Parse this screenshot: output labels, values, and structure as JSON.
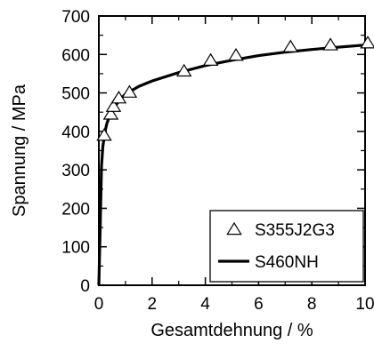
{
  "chart_data": {
    "type": "scatter",
    "title": "",
    "xlabel": "Gesamtdehnung / %",
    "ylabel": "Spannung / MPa",
    "xlim": [
      0,
      10
    ],
    "ylim": [
      0,
      700
    ],
    "xticks": [
      "0",
      "2",
      "4",
      "6",
      "8",
      "10"
    ],
    "yticks": [
      "0",
      "100",
      "200",
      "300",
      "400",
      "500",
      "600",
      "700"
    ],
    "grid": false,
    "legend_position": "bottom-right",
    "series": [
      {
        "name": "S355J2G3",
        "type": "scatter",
        "marker": "triangle-open",
        "color": "#000000",
        "x": [
          0.2,
          0.45,
          0.55,
          0.75,
          1.15,
          3.2,
          4.2,
          5.15,
          7.2,
          8.7,
          10.1
        ],
        "y": [
          390,
          445,
          465,
          487,
          502,
          557,
          585,
          598,
          620,
          625,
          630
        ]
      },
      {
        "name": "S460NH",
        "type": "line",
        "color": "#000000",
        "x": [
          0.0,
          0.05,
          0.1,
          0.15,
          0.2,
          0.25,
          0.3,
          0.4,
          0.5,
          0.6,
          0.8,
          1.0,
          1.5,
          2.0,
          3.0,
          4.0,
          5.0,
          6.0,
          7.0,
          8.0,
          9.0,
          10.1
        ],
        "y": [
          0,
          150,
          310,
          360,
          385,
          405,
          420,
          440,
          455,
          465,
          483,
          497,
          517,
          531,
          553,
          571,
          585,
          597,
          606,
          613,
          619,
          625
        ]
      }
    ]
  }
}
